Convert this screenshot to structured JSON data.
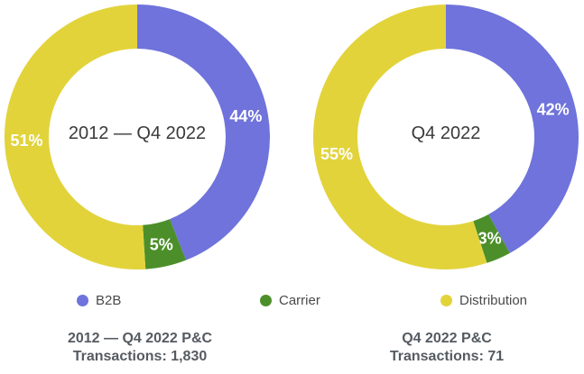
{
  "colors": {
    "b2b": "#6f73db",
    "carrier": "#4c8f2a",
    "distribution": "#e2d33b"
  },
  "legend": [
    {
      "label": "B2B",
      "color": "#6f73db"
    },
    {
      "label": "Carrier",
      "color": "#4c8f2a"
    },
    {
      "label": "Distribution",
      "color": "#e2d33b"
    }
  ],
  "captions": [
    {
      "line1": "2012 — Q4 2022 P&C",
      "line2": "Transactions: 1,830"
    },
    {
      "line1": "Q4 2022 P&C",
      "line2": "Transactions: 71"
    }
  ],
  "chart_data": [
    {
      "type": "pie",
      "title": "2012 — Q4 2022",
      "categories": [
        "B2B",
        "Carrier",
        "Distribution"
      ],
      "values": [
        44,
        5,
        51
      ],
      "labels": [
        "44%",
        "5%",
        "51%"
      ],
      "colors": [
        "#6f73db",
        "#4c8f2a",
        "#e2d33b"
      ],
      "donut": true
    },
    {
      "type": "pie",
      "title": "Q4 2022",
      "categories": [
        "B2B",
        "Carrier",
        "Distribution"
      ],
      "values": [
        42,
        3,
        55
      ],
      "labels": [
        "42%",
        "3%",
        "55%"
      ],
      "colors": [
        "#6f73db",
        "#4c8f2a",
        "#e2d33b"
      ],
      "donut": true
    }
  ]
}
